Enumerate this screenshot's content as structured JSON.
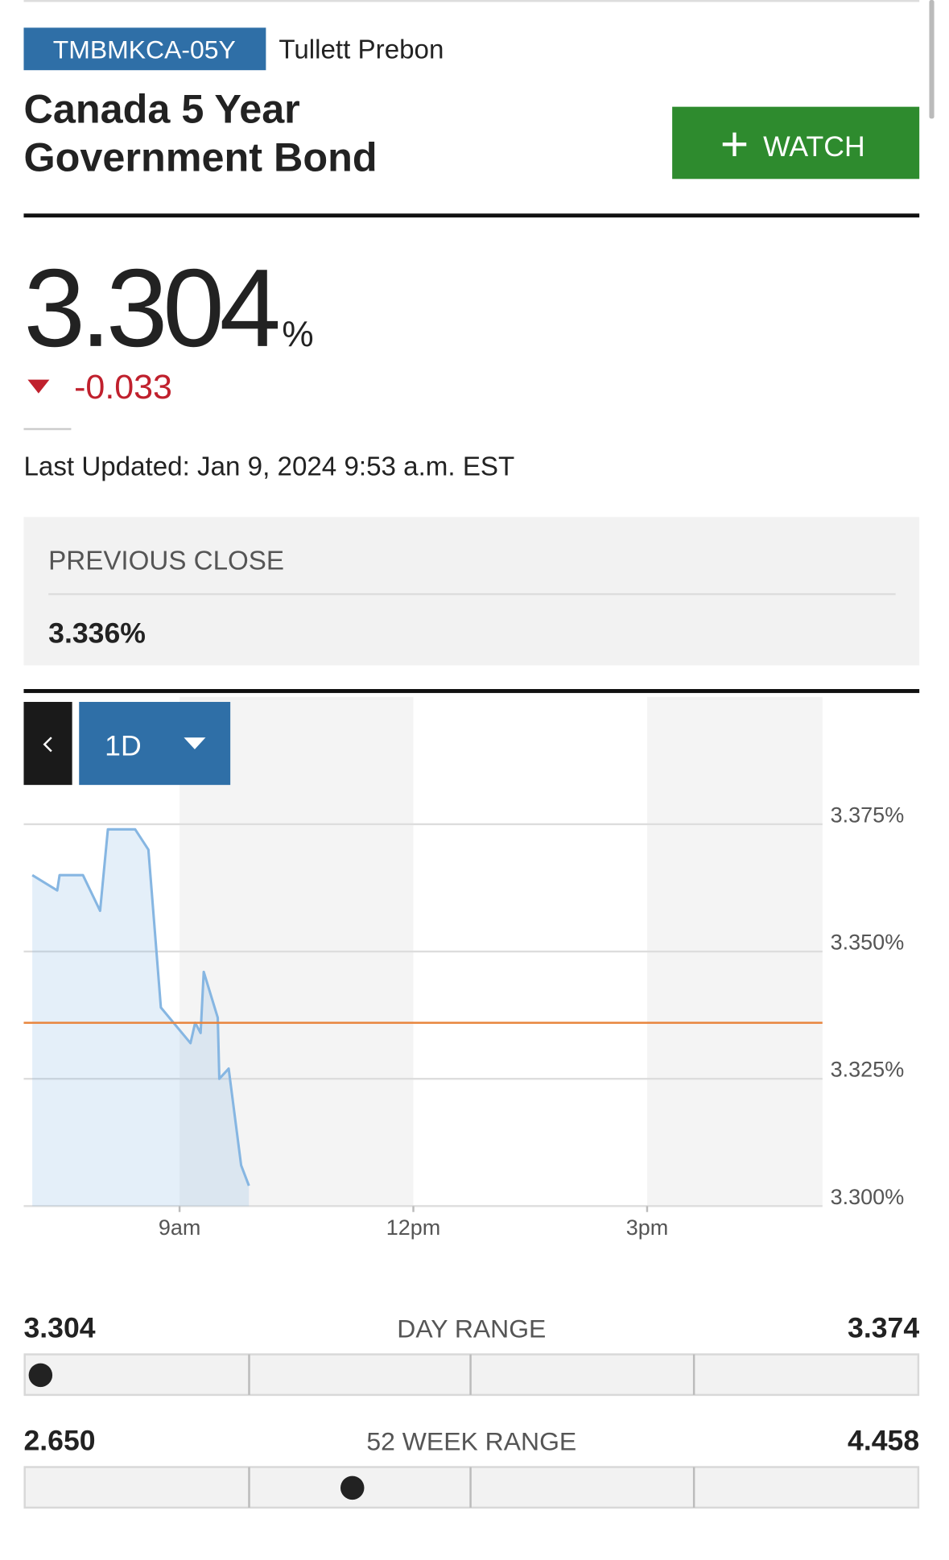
{
  "header": {
    "ticker": "TMBMKCA-05Y",
    "source": "Tullett Prebon",
    "title_line1": "Canada 5 Year",
    "title_line2": "Government Bond",
    "watch_button": "WATCH"
  },
  "quote": {
    "price": "3.304",
    "unit": "%",
    "change": "-0.033",
    "last_updated": "Last Updated: Jan 9, 2024 9:53 a.m. EST"
  },
  "previous_close": {
    "label": "PREVIOUS CLOSE",
    "value": "3.336%"
  },
  "chart_controls": {
    "range": "1D"
  },
  "chart_data": {
    "type": "line",
    "x": [
      7.11,
      7.43,
      7.46,
      7.76,
      7.98,
      8.08,
      8.43,
      8.6,
      8.76,
      9.14,
      9.2,
      9.27,
      9.31,
      9.49,
      9.51,
      9.63,
      9.79,
      9.89
    ],
    "series": [
      {
        "color": "#86b6e2",
        "values": [
          3.365,
          3.362,
          3.365,
          3.365,
          3.358,
          3.374,
          3.374,
          3.37,
          3.339,
          3.332,
          3.336,
          3.334,
          3.346,
          3.337,
          3.325,
          3.327,
          3.308,
          3.304
        ]
      }
    ],
    "reference_line": {
      "value": 3.336,
      "color": "#e8843c"
    },
    "xlim": [
      7,
      17.25
    ],
    "xticks": [
      {
        "value": 9,
        "label": "9am"
      },
      {
        "value": 12,
        "label": "12pm"
      },
      {
        "value": 15,
        "label": "3pm"
      }
    ],
    "ylim": [
      3.3,
      3.4
    ],
    "yticks": [
      {
        "value": 3.3,
        "label": "3.300%"
      },
      {
        "value": 3.325,
        "label": "3.325%"
      },
      {
        "value": 3.35,
        "label": "3.350%"
      },
      {
        "value": 3.375,
        "label": "3.375%"
      }
    ],
    "grid": true
  },
  "ranges": [
    {
      "label": "DAY RANGE",
      "low": {
        "value": 3.304,
        "label": "3.304"
      },
      "high": {
        "value": 3.374,
        "label": "3.374"
      },
      "current": 3.304
    },
    {
      "label": "52 WEEK RANGE",
      "low": {
        "value": 2.65,
        "label": "2.650"
      },
      "high": {
        "value": 4.458,
        "label": "4.458"
      },
      "current": 3.304
    }
  ]
}
